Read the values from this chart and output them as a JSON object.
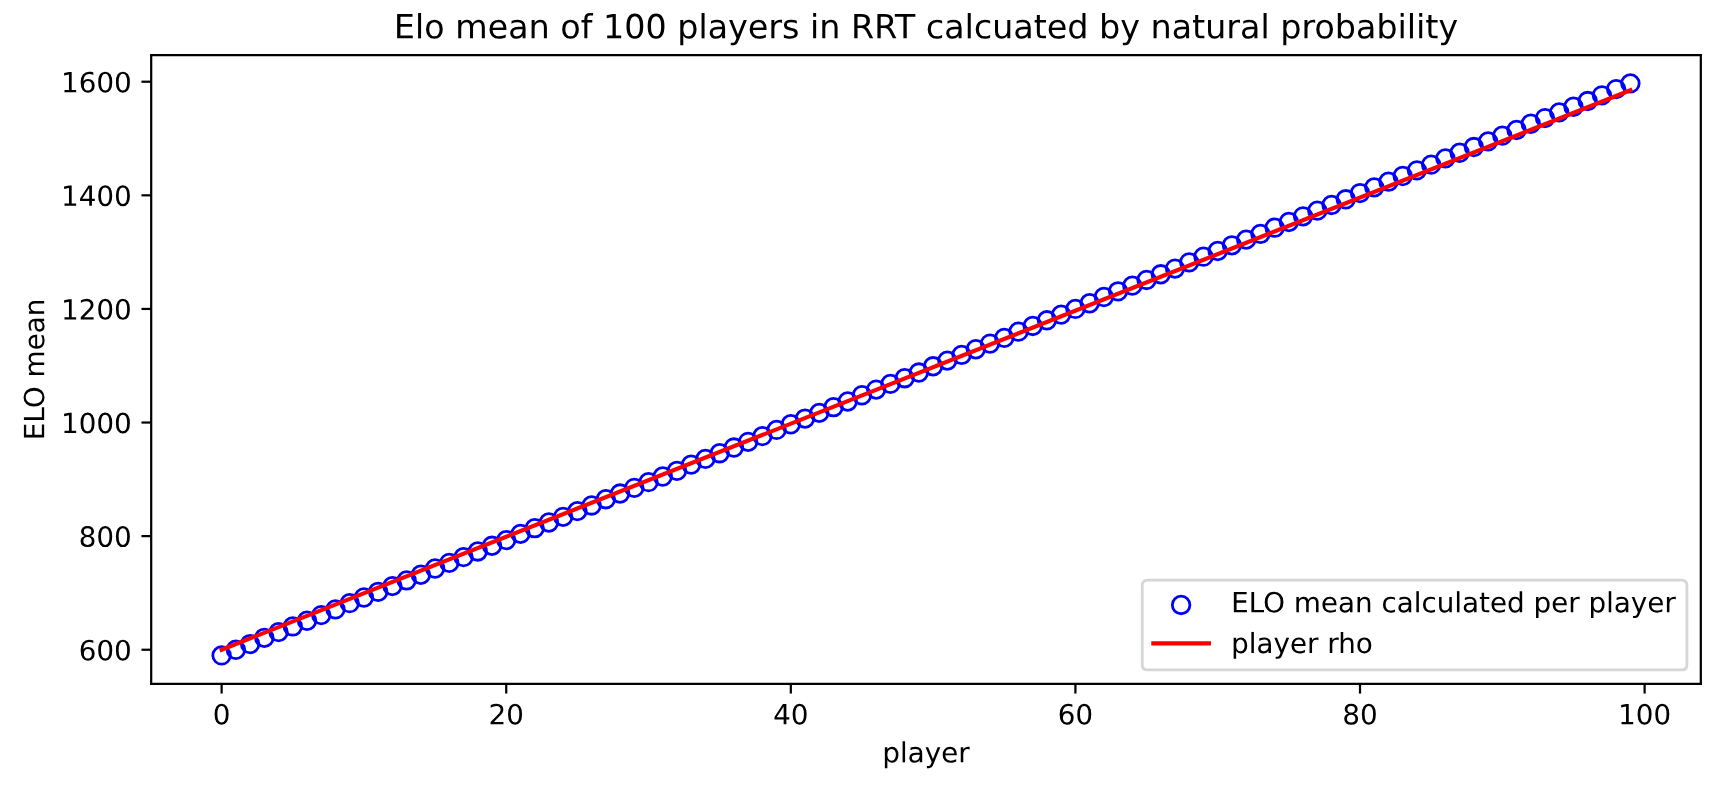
{
  "chart_data": {
    "type": "scatter",
    "title": "Elo mean of 100 players in RRT calcuated by natural probability",
    "xlabel": "player",
    "ylabel": "ELO mean",
    "xlim": [
      -4.95,
      103.95
    ],
    "xticks": [
      0,
      20,
      40,
      60,
      80,
      100
    ],
    "ylim": [
      540,
      1647
    ],
    "yticks": [
      600,
      800,
      1000,
      1200,
      1400,
      1600
    ],
    "legend": "bottom right",
    "grid": false,
    "series": [
      {
        "name": "ELO mean calculated per player",
        "marker": "circle",
        "color": "#0000ff",
        "x": [
          0,
          1,
          2,
          3,
          4,
          5,
          6,
          7,
          8,
          9,
          10,
          11,
          12,
          13,
          14,
          15,
          16,
          17,
          18,
          19,
          20,
          21,
          22,
          23,
          24,
          25,
          26,
          27,
          28,
          29,
          30,
          31,
          32,
          33,
          34,
          35,
          36,
          37,
          38,
          39,
          40,
          41,
          42,
          43,
          44,
          45,
          46,
          47,
          48,
          49,
          50,
          51,
          52,
          53,
          54,
          55,
          56,
          57,
          58,
          59,
          60,
          61,
          62,
          63,
          64,
          65,
          66,
          67,
          68,
          69,
          70,
          71,
          72,
          73,
          74,
          75,
          76,
          77,
          78,
          79,
          80,
          81,
          82,
          83,
          84,
          85,
          86,
          87,
          88,
          89,
          90,
          91,
          92,
          93,
          94,
          95,
          96,
          97,
          98,
          99
        ],
        "values": [
          590,
          600,
          610,
          621,
          631,
          641,
          651,
          661,
          671,
          682,
          692,
          702,
          712,
          722,
          732,
          743,
          753,
          763,
          773,
          783,
          793,
          804,
          814,
          824,
          834,
          844,
          854,
          865,
          875,
          885,
          895,
          905,
          915,
          926,
          936,
          946,
          956,
          966,
          976,
          987,
          997,
          1007,
          1017,
          1027,
          1037,
          1048,
          1058,
          1068,
          1078,
          1088,
          1099,
          1109,
          1119,
          1129,
          1139,
          1149,
          1160,
          1170,
          1180,
          1190,
          1200,
          1210,
          1221,
          1231,
          1241,
          1251,
          1261,
          1271,
          1282,
          1292,
          1302,
          1312,
          1322,
          1332,
          1343,
          1353,
          1363,
          1373,
          1383,
          1393,
          1404,
          1414,
          1424,
          1434,
          1444,
          1454,
          1465,
          1475,
          1485,
          1495,
          1505,
          1515,
          1526,
          1536,
          1546,
          1556,
          1566,
          1576,
          1587,
          1597
        ]
      },
      {
        "name": "player rho",
        "type": "line",
        "marker": "none",
        "line_style": "solid",
        "color": "#ff0000",
        "x": [
          0,
          99
        ],
        "values": [
          600,
          1585
        ]
      }
    ]
  }
}
